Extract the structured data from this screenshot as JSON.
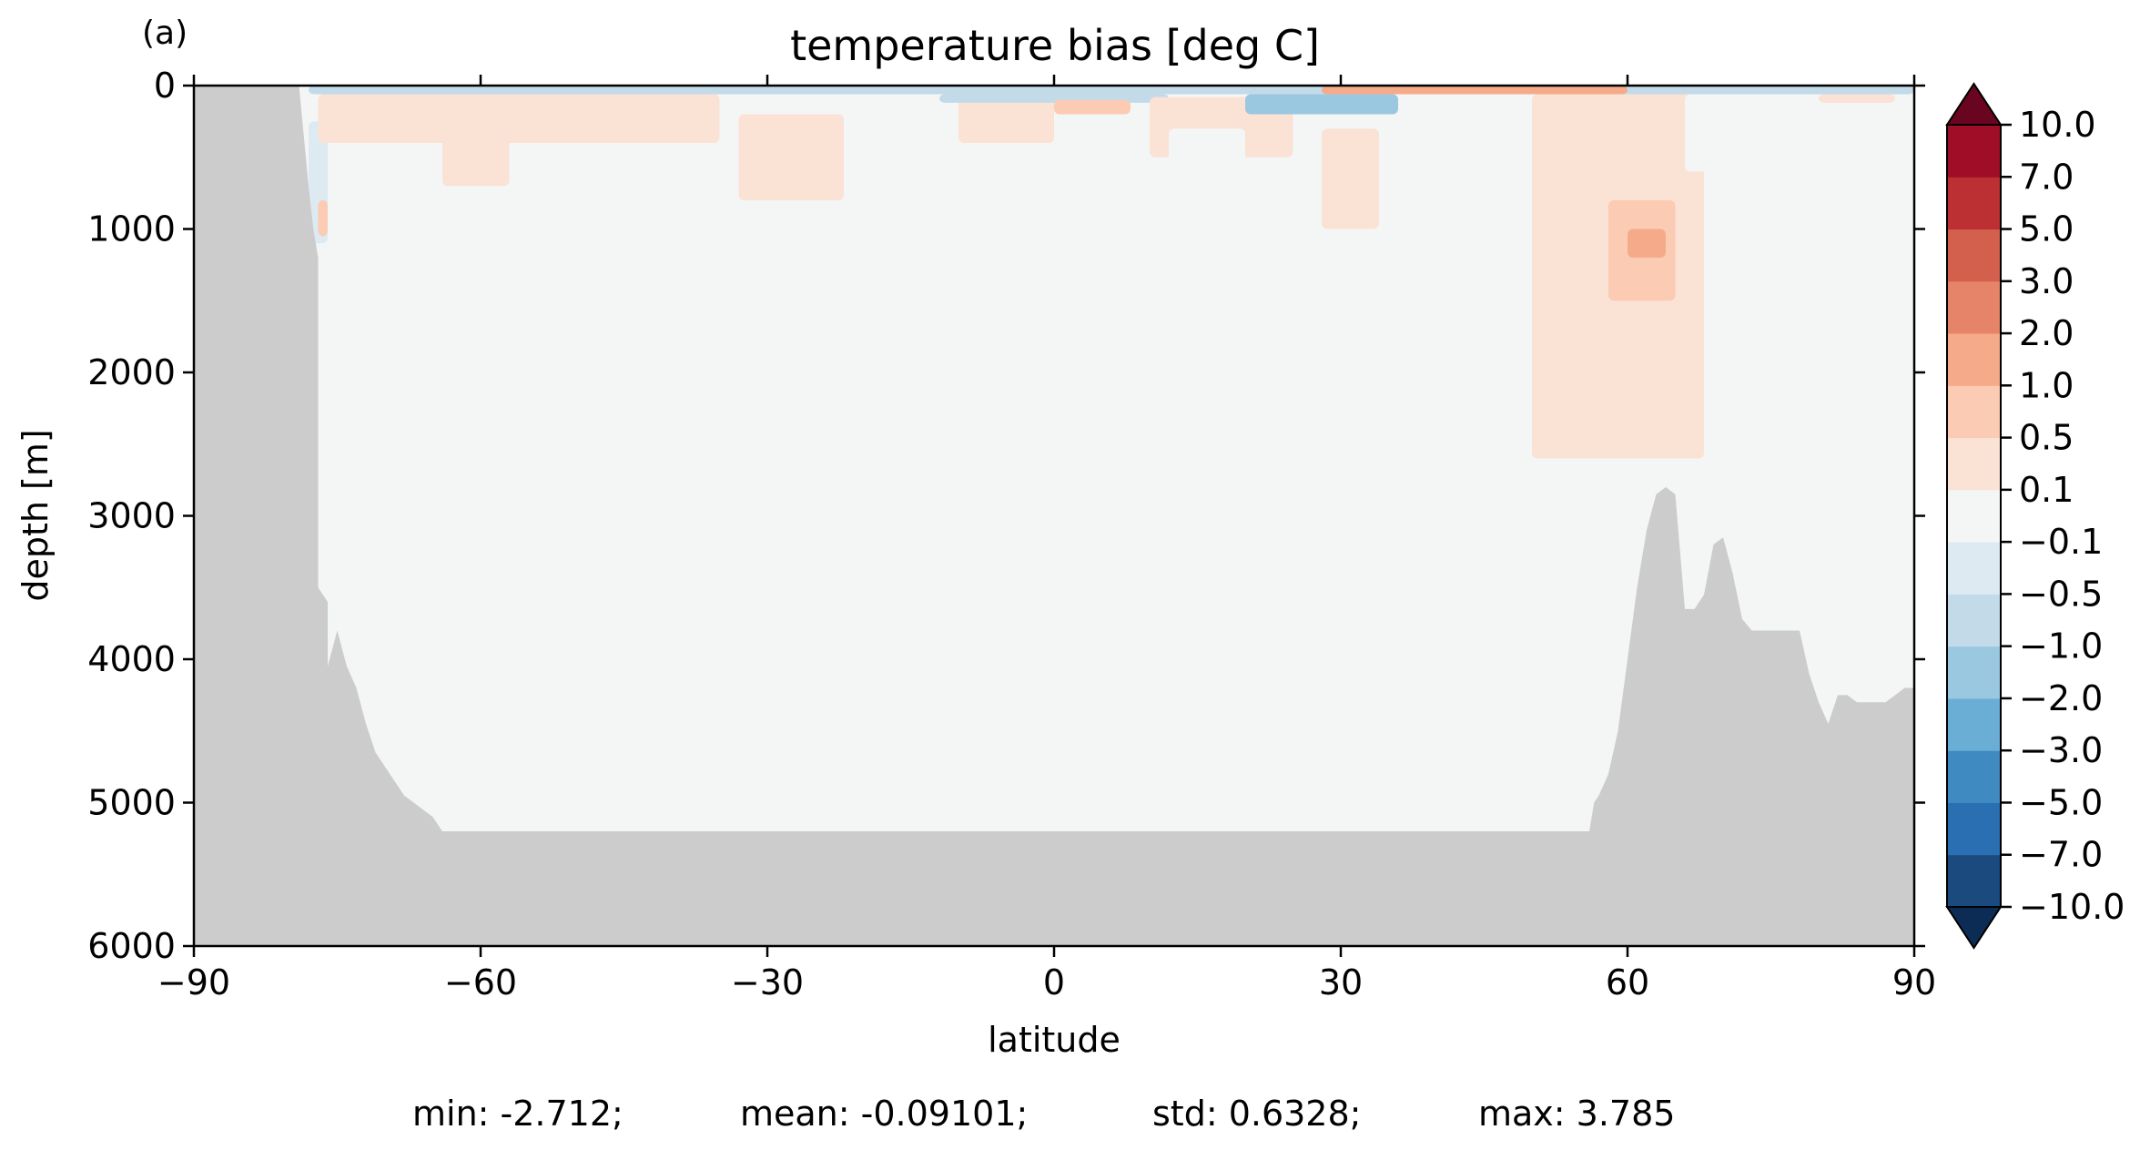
{
  "panel_label": "(a)",
  "stats": {
    "min": "min: -2.712;",
    "mean": "mean: -0.09101;",
    "std": "std: 0.6328;",
    "max": "max: 3.785"
  },
  "colors": {
    "land": "#cccccc",
    "ocean_neutral": "#f4f6f6"
  },
  "chart_data": {
    "type": "heatmap",
    "title": "temperature bias [deg C]",
    "xlabel": "latitude",
    "ylabel": "depth [m]",
    "xlim": [
      -90,
      90
    ],
    "ylim": [
      6000,
      0
    ],
    "y_inverted": true,
    "xticks": [
      -90,
      -60,
      -30,
      0,
      30,
      60,
      90
    ],
    "xticklabels": [
      "−90",
      "−60",
      "−30",
      "0",
      "30",
      "60",
      "90"
    ],
    "yticks": [
      0,
      1000,
      2000,
      3000,
      4000,
      5000,
      6000
    ],
    "yticklabels": [
      "0",
      "1000",
      "2000",
      "3000",
      "4000",
      "5000",
      "6000"
    ],
    "colorbar": {
      "levels": [
        -10.0,
        -7.0,
        -5.0,
        -3.0,
        -2.0,
        -1.0,
        -0.5,
        -0.1,
        0.1,
        0.5,
        1.0,
        2.0,
        3.0,
        5.0,
        7.0,
        10.0
      ],
      "ticklabels": [
        "−10.0",
        "−7.0",
        "−5.0",
        "−3.0",
        "−2.0",
        "−1.0",
        "−0.5",
        "−0.1",
        "0.1",
        "0.5",
        "1.0",
        "2.0",
        "3.0",
        "5.0",
        "7.0",
        "10.0"
      ],
      "colors": [
        "#1a4a7e",
        "#2a6fb2",
        "#3f8ac0",
        "#6aaed6",
        "#9ac8e0",
        "#c3dbe9",
        "#deeaf1",
        "#f4f6f6",
        "#fae2d5",
        "#fbcbb4",
        "#f5ab8a",
        "#e58468",
        "#d2604d",
        "#bc2f32",
        "#a00d27"
      ],
      "extend_under_color": "#0d2c55",
      "extend_over_color": "#6a0520"
    },
    "bathymetry": {
      "lat": [
        -90,
        -79,
        -78,
        -77.5,
        -77,
        -77,
        -76,
        -76,
        -75,
        -74,
        -73,
        -72,
        -71,
        -70,
        -68,
        -66,
        -65,
        -64,
        -64,
        56,
        56.5,
        57,
        58,
        59,
        60,
        61,
        62,
        63,
        64,
        65,
        65.5,
        66,
        67,
        68,
        69,
        70,
        71,
        72,
        73,
        75,
        77,
        78,
        79,
        80,
        81,
        82,
        83,
        84,
        85,
        86,
        87,
        88,
        89,
        90
      ],
      "bottom_depth_m": [
        0,
        0,
        700,
        1000,
        1200,
        3500,
        3600,
        4050,
        3800,
        4050,
        4200,
        4450,
        4650,
        4750,
        4950,
        5050,
        5100,
        5200,
        5200,
        5200,
        5000,
        4950,
        4800,
        4500,
        4000,
        3500,
        3100,
        2850,
        2800,
        2850,
        3250,
        3650,
        3650,
        3550,
        3200,
        3150,
        3400,
        3720,
        3800,
        3800,
        3800,
        3800,
        4100,
        4300,
        4450,
        4250,
        4250,
        4300,
        4300,
        4300,
        4300,
        4250,
        4200,
        4200
      ]
    },
    "anomalies": [
      {
        "lat_range": [
          -78,
          90
        ],
        "depth_range": [
          0,
          60
        ],
        "value": -1.0
      },
      {
        "lat_range": [
          -78,
          -76
        ],
        "depth_range": [
          250,
          1100
        ],
        "value": -0.5
      },
      {
        "lat_range": [
          -77,
          -76
        ],
        "depth_range": [
          800,
          1050
        ],
        "value": 0.5
      },
      {
        "lat_range": [
          -77,
          -35
        ],
        "depth_range": [
          60,
          400
        ],
        "value": 0.1
      },
      {
        "lat_range": [
          -64,
          -57
        ],
        "depth_range": [
          100,
          700
        ],
        "value": 0.1
      },
      {
        "lat_range": [
          -33,
          -22
        ],
        "depth_range": [
          200,
          800
        ],
        "value": 0.1
      },
      {
        "lat_range": [
          -22,
          -12
        ],
        "depth_range": [
          300,
          800
        ],
        "value": -0.1
      },
      {
        "lat_range": [
          -10,
          0
        ],
        "depth_range": [
          60,
          400
        ],
        "value": 0.1
      },
      {
        "lat_range": [
          -12,
          12
        ],
        "depth_range": [
          60,
          120
        ],
        "value": -1.0
      },
      {
        "lat_range": [
          0,
          8
        ],
        "depth_range": [
          100,
          200
        ],
        "value": 0.5
      },
      {
        "lat_range": [
          10,
          25
        ],
        "depth_range": [
          80,
          500
        ],
        "value": 0.1
      },
      {
        "lat_range": [
          12,
          20
        ],
        "depth_range": [
          300,
          1300
        ],
        "value": -0.1
      },
      {
        "lat_range": [
          28,
          34
        ],
        "depth_range": [
          300,
          1000
        ],
        "value": 0.1
      },
      {
        "lat_range": [
          20,
          36
        ],
        "depth_range": [
          60,
          200
        ],
        "value": -2.0
      },
      {
        "lat_range": [
          28,
          60
        ],
        "depth_range": [
          0,
          60
        ],
        "value": 1.0
      },
      {
        "lat_range": [
          50,
          68
        ],
        "depth_range": [
          60,
          2600
        ],
        "value": 0.1
      },
      {
        "lat_range": [
          58,
          65
        ],
        "depth_range": [
          800,
          1500
        ],
        "value": 0.5
      },
      {
        "lat_range": [
          60,
          64
        ],
        "depth_range": [
          1000,
          1200
        ],
        "value": 1.0
      },
      {
        "lat_range": [
          66,
          80
        ],
        "depth_range": [
          60,
          600
        ],
        "value": -0.1
      },
      {
        "lat_range": [
          80,
          88
        ],
        "depth_range": [
          60,
          120
        ],
        "value": 0.1
      }
    ]
  }
}
